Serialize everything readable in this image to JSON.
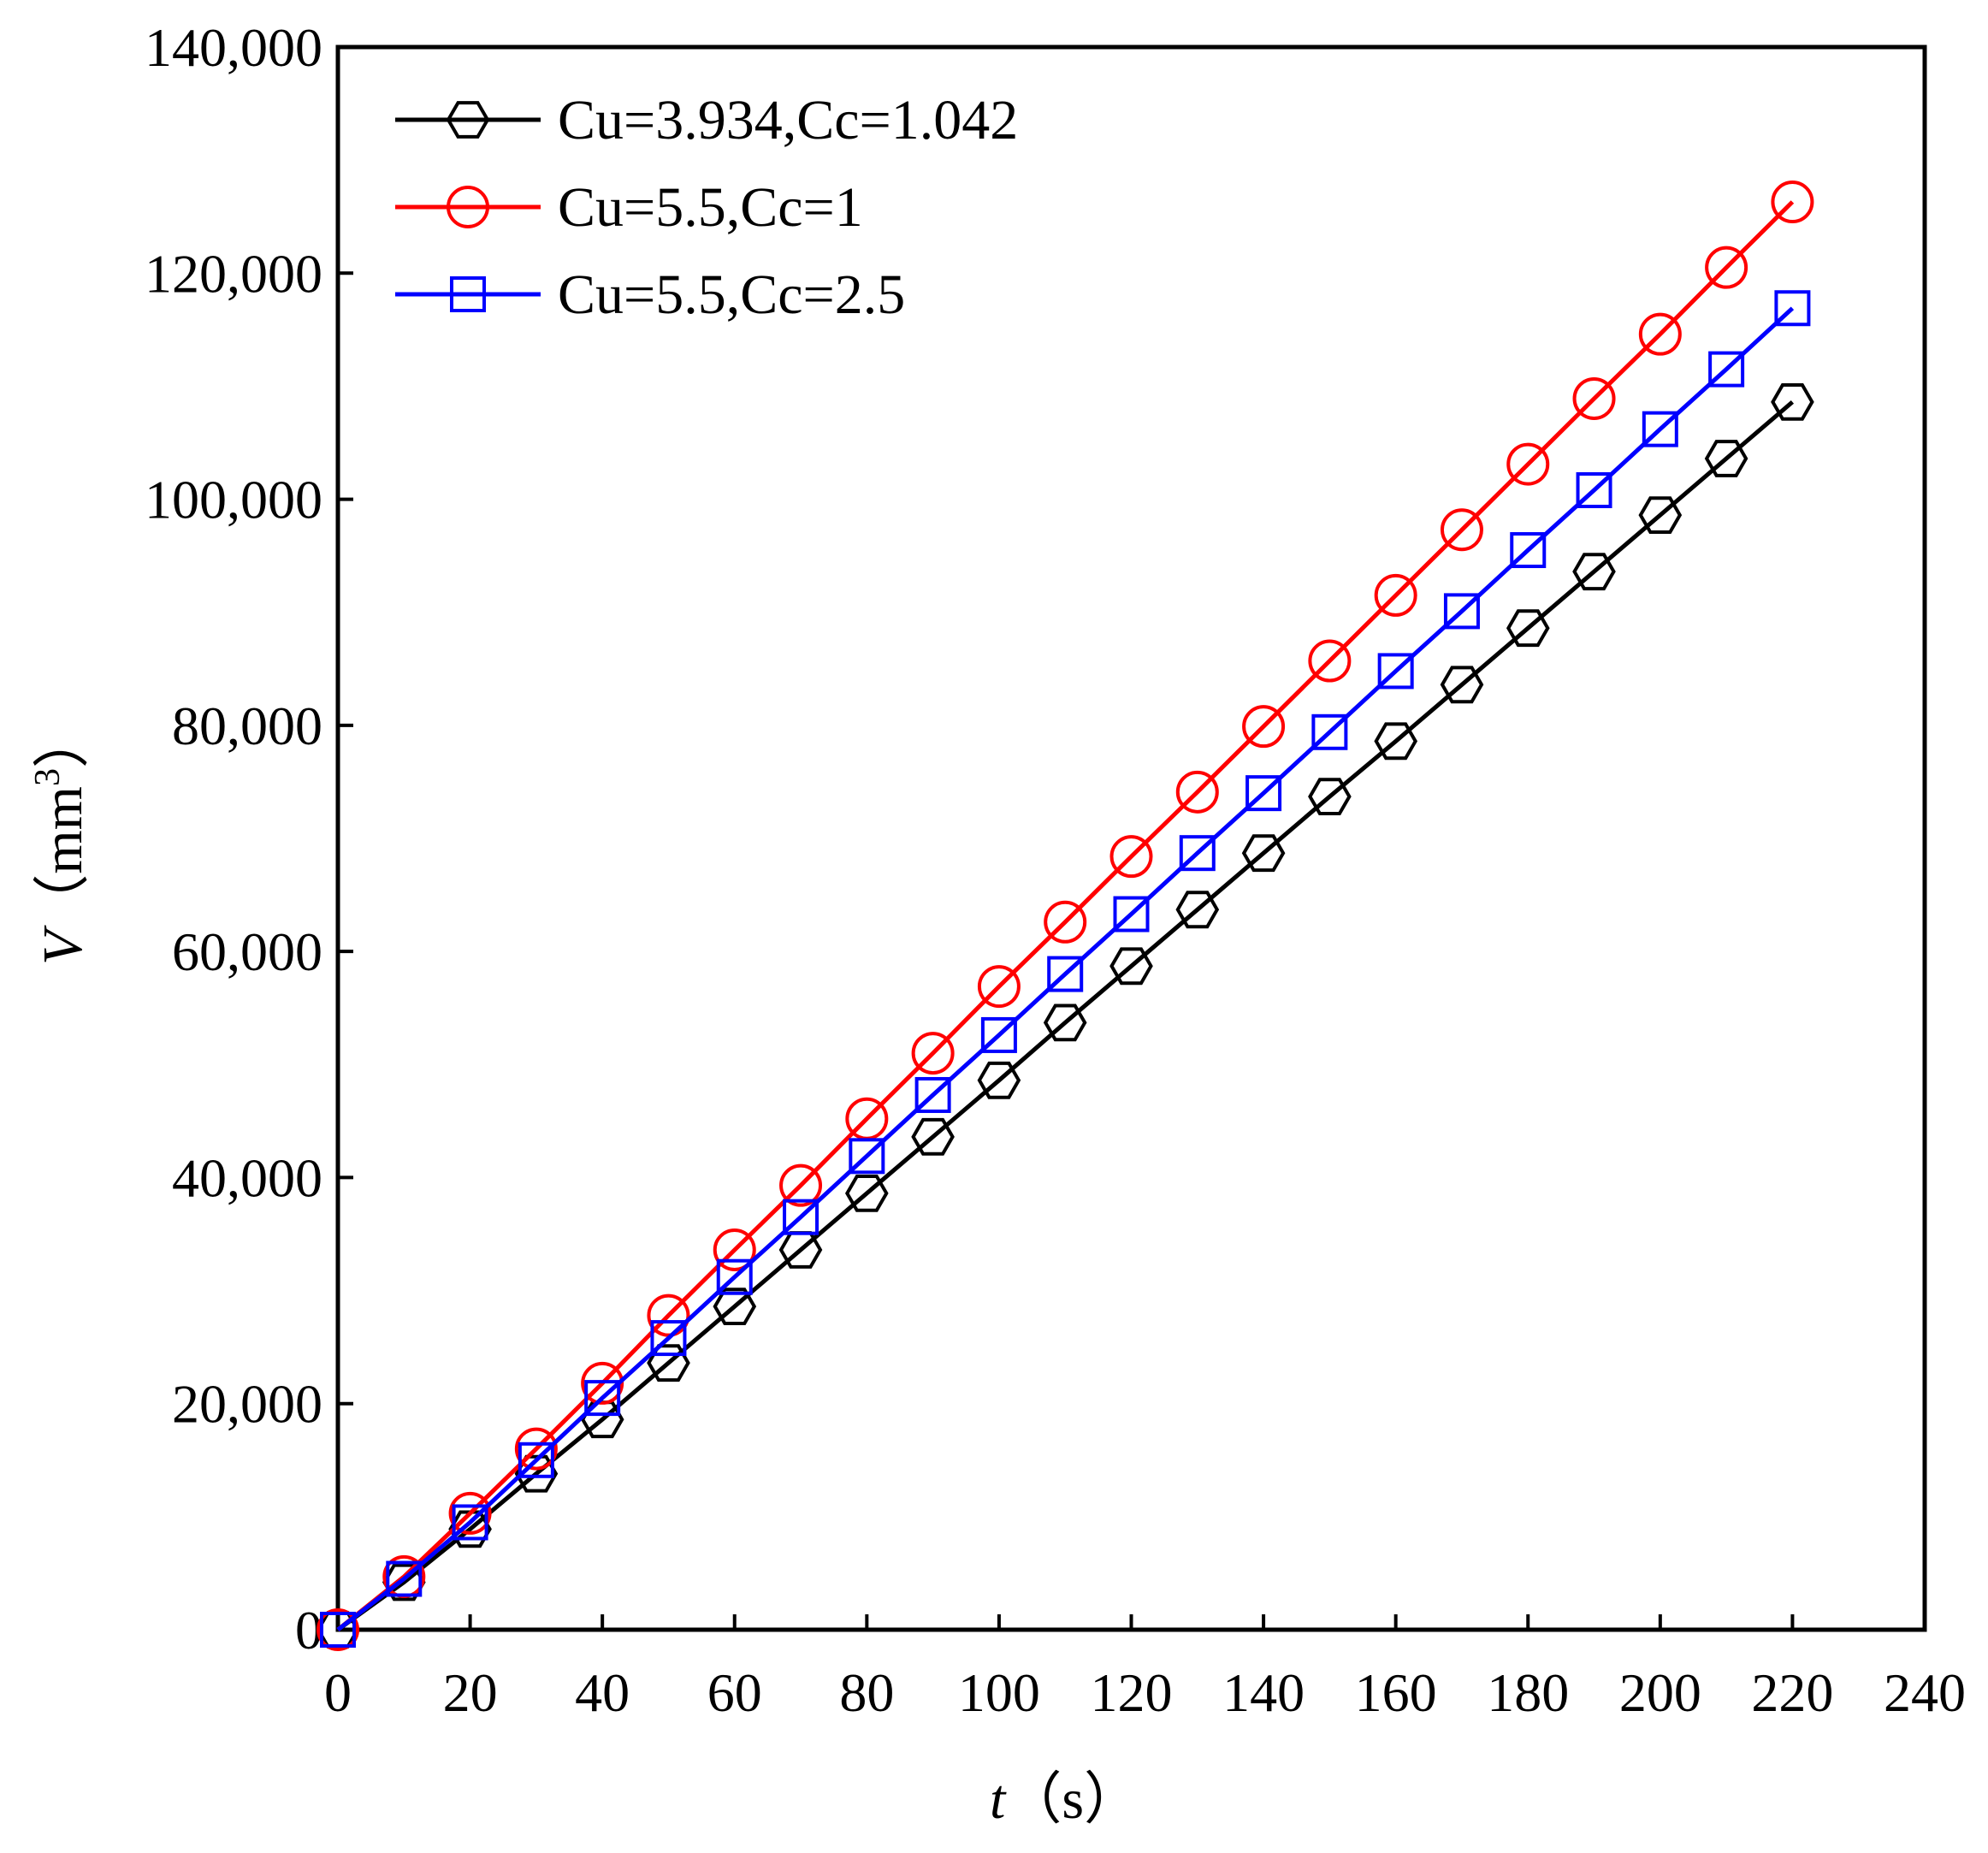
{
  "chart_data": {
    "type": "line",
    "title": "",
    "xlabel": "t",
    "xlabel_unit": "（s）",
    "ylabel": "V",
    "ylabel_unit": "（mm",
    "ylabel_unit_sup": "3",
    "ylabel_unit_close": "）",
    "xlim": [
      0,
      240
    ],
    "ylim": [
      0,
      140000
    ],
    "xticks": [
      0,
      20,
      40,
      60,
      80,
      100,
      120,
      140,
      160,
      180,
      200,
      220,
      240
    ],
    "xtick_labels": [
      "0",
      "20",
      "40",
      "60",
      "80",
      "100",
      "120",
      "140",
      "160",
      "180",
      "200",
      "220",
      "240"
    ],
    "yticks": [
      0,
      20000,
      40000,
      60000,
      80000,
      100000,
      120000,
      140000
    ],
    "ytick_labels": [
      "0",
      "20,000",
      "40,000",
      "60,000",
      "80,000",
      "100,000",
      "120,000",
      "140,000"
    ],
    "grid": false,
    "legend_position": "top-left",
    "x": [
      0,
      10,
      20,
      30,
      40,
      50,
      60,
      70,
      80,
      90,
      100,
      110,
      120,
      130,
      140,
      150,
      160,
      170,
      180,
      190,
      200,
      210,
      220
    ],
    "series": [
      {
        "name": "Cu=3.934,Cc=1.042",
        "color": "#000000",
        "marker": "hexagon",
        "values": [
          0,
          4200,
          8900,
          13800,
          18600,
          23600,
          28600,
          33600,
          38600,
          43600,
          48600,
          53700,
          58700,
          63700,
          68700,
          73700,
          78600,
          83600,
          88600,
          93600,
          98600,
          103600,
          108600
        ]
      },
      {
        "name": "Cu=5.5,Cc=1",
        "color": "#ff0000",
        "marker": "circle",
        "values": [
          0,
          4700,
          10300,
          16000,
          21800,
          27800,
          33600,
          39300,
          45200,
          51000,
          56900,
          62600,
          68400,
          74100,
          79900,
          85700,
          91500,
          97300,
          103100,
          108900,
          114600,
          120500,
          126300
        ]
      },
      {
        "name": "Cu=5.5,Cc=2.5",
        "color": "#0000ff",
        "marker": "square",
        "values": [
          0,
          4500,
          9500,
          15000,
          20500,
          25800,
          31200,
          36500,
          41900,
          47300,
          52600,
          58000,
          63300,
          68700,
          74000,
          79400,
          84800,
          90100,
          95500,
          100800,
          106200,
          111500,
          116900
        ]
      }
    ]
  }
}
